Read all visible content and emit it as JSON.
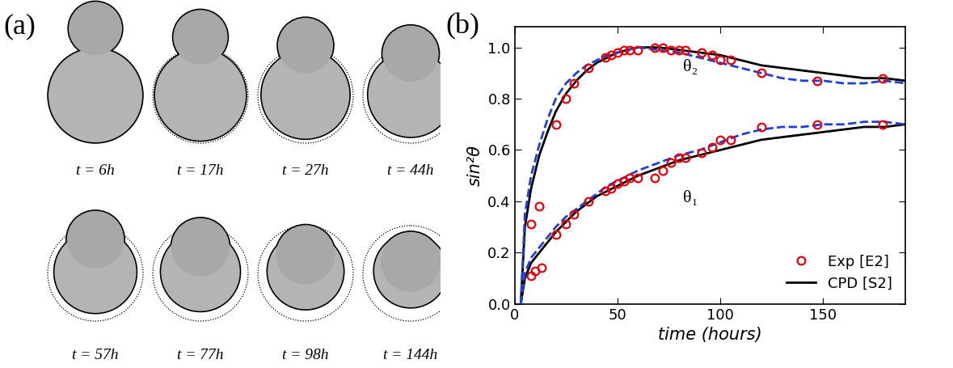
{
  "panel_a": {
    "label": "(a)",
    "snapshots": [
      "t = 6h",
      "t = 17h",
      "t = 27h",
      "t = 44h",
      "t = 57h",
      "t = 77h",
      "t = 98h",
      "t = 144h"
    ]
  },
  "chart_data": {
    "type": "line",
    "panel_label": "(b)",
    "xlabel": "time (hours)",
    "ylabel": "sin²θ",
    "xlim": [
      0,
      190
    ],
    "xticks": [
      0,
      50,
      100,
      150
    ],
    "ylim": [
      0,
      1.08
    ],
    "yticks": [
      0.0,
      0.2,
      0.4,
      0.6,
      0.8,
      1.0
    ],
    "legend": "lower right",
    "annotations": [
      {
        "text": "θ₂",
        "x": 82,
        "y": 0.92
      },
      {
        "text": "θ₁",
        "x": 82,
        "y": 0.41
      }
    ],
    "series": [
      {
        "name": "Exp [E2]",
        "color": "#e8000b",
        "marker": "circle",
        "line_style": "none",
        "x": [
          8,
          12,
          20,
          25,
          29,
          36,
          44,
          47,
          50,
          53,
          56,
          60,
          68,
          72,
          76,
          80,
          83,
          91,
          96,
          100,
          105,
          120,
          147,
          179
        ],
        "values": [
          0.31,
          0.38,
          0.7,
          0.8,
          0.86,
          0.92,
          0.96,
          0.97,
          0.98,
          0.99,
          0.99,
          0.99,
          1.0,
          1.0,
          0.99,
          0.99,
          0.99,
          0.98,
          0.97,
          0.95,
          0.95,
          0.9,
          0.87,
          0.88
        ]
      },
      {
        "name": "Exp [E2]",
        "color": "#e8000b",
        "marker": "circle",
        "line_style": "none",
        "x": [
          8,
          10,
          13,
          20,
          25,
          29,
          36,
          44,
          47,
          50,
          53,
          56,
          60,
          68,
          72,
          76,
          80,
          83,
          91,
          96,
          100,
          105,
          120,
          147,
          179
        ],
        "values": [
          0.11,
          0.13,
          0.14,
          0.27,
          0.31,
          0.35,
          0.4,
          0.44,
          0.45,
          0.47,
          0.48,
          0.49,
          0.49,
          0.49,
          0.52,
          0.55,
          0.57,
          0.57,
          0.59,
          0.61,
          0.64,
          0.64,
          0.69,
          0.7,
          0.7
        ]
      },
      {
        "name": "CPD [S2]",
        "color": "#000000",
        "line_style": "solid",
        "x": [
          3,
          5,
          8,
          12,
          16,
          20,
          25,
          30,
          35,
          40,
          45,
          50,
          55,
          60,
          70,
          80,
          90,
          100,
          110,
          120,
          130,
          140,
          150,
          160,
          170,
          180,
          190
        ],
        "values": [
          0.0,
          0.3,
          0.45,
          0.58,
          0.67,
          0.75,
          0.82,
          0.87,
          0.91,
          0.94,
          0.96,
          0.98,
          0.99,
          1.0,
          1.0,
          0.99,
          0.98,
          0.97,
          0.95,
          0.93,
          0.92,
          0.91,
          0.9,
          0.89,
          0.88,
          0.88,
          0.87
        ]
      },
      {
        "name": "CPD [S2]",
        "color": "#000000",
        "line_style": "solid",
        "x": [
          3,
          5,
          8,
          12,
          16,
          20,
          25,
          30,
          35,
          40,
          45,
          50,
          55,
          60,
          70,
          80,
          90,
          100,
          110,
          120,
          130,
          140,
          150,
          160,
          170,
          180,
          190
        ],
        "values": [
          0.0,
          0.1,
          0.16,
          0.2,
          0.24,
          0.28,
          0.32,
          0.36,
          0.39,
          0.42,
          0.44,
          0.46,
          0.48,
          0.5,
          0.53,
          0.56,
          0.58,
          0.6,
          0.62,
          0.64,
          0.65,
          0.66,
          0.67,
          0.68,
          0.69,
          0.69,
          0.7
        ]
      },
      {
        "color": "#1f3fd6",
        "line_style": "dashed",
        "x": [
          3,
          5,
          8,
          12,
          16,
          20,
          25,
          30,
          35,
          40,
          45,
          50,
          55,
          60,
          70,
          80,
          90,
          100,
          110,
          120,
          130,
          140,
          150,
          160,
          170,
          180,
          190
        ],
        "values": [
          0.0,
          0.35,
          0.5,
          0.62,
          0.72,
          0.8,
          0.86,
          0.9,
          0.93,
          0.95,
          0.97,
          0.98,
          0.99,
          1.0,
          0.99,
          0.98,
          0.96,
          0.94,
          0.92,
          0.9,
          0.88,
          0.87,
          0.87,
          0.86,
          0.86,
          0.87,
          0.86
        ]
      },
      {
        "color": "#1f3fd6",
        "line_style": "dashed",
        "x": [
          3,
          5,
          8,
          12,
          16,
          20,
          25,
          30,
          35,
          40,
          45,
          50,
          55,
          60,
          70,
          80,
          90,
          100,
          110,
          120,
          130,
          140,
          150,
          160,
          170,
          180,
          190
        ],
        "values": [
          0.0,
          0.12,
          0.18,
          0.22,
          0.26,
          0.3,
          0.34,
          0.37,
          0.4,
          0.43,
          0.46,
          0.48,
          0.5,
          0.52,
          0.55,
          0.58,
          0.6,
          0.63,
          0.66,
          0.68,
          0.69,
          0.69,
          0.7,
          0.7,
          0.71,
          0.71,
          0.7
        ]
      }
    ]
  }
}
